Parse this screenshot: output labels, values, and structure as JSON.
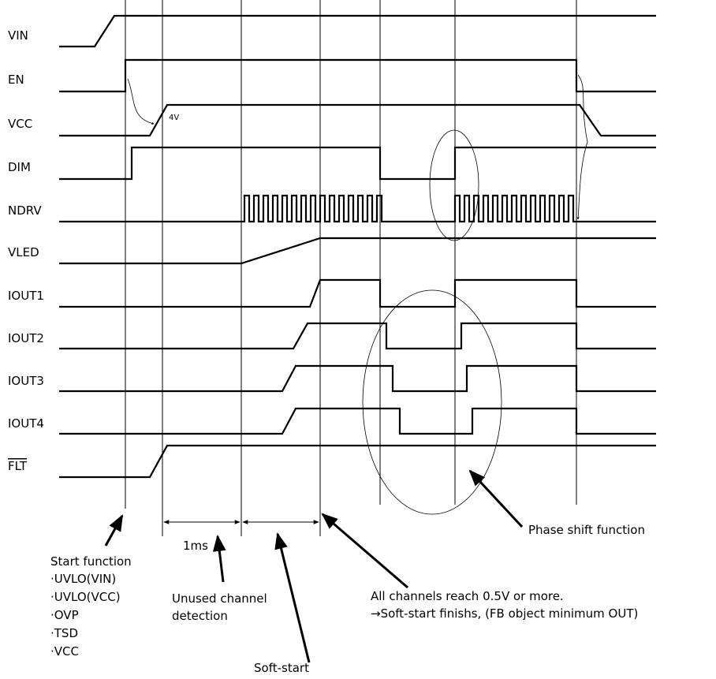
{
  "signals": [
    "VIN",
    "EN",
    "VCC",
    "DIM",
    "NDRV",
    "VLED",
    "IOUT1",
    "IOUT2",
    "IOUT3",
    "IOUT4",
    "FLT"
  ],
  "vcc_threshold": "4V",
  "interval_label": "1ms",
  "start_function": {
    "title": "Start function",
    "items": [
      "·UVLO(VIN)",
      "·UVLO(VCC)",
      "·OVP",
      "·TSD",
      "·VCC"
    ]
  },
  "unused_channel": [
    "Unused channel",
    "detection"
  ],
  "soft_start": "Soft-start",
  "all_channels": [
    "All channels reach 0.5V or more.",
    "→Soft-start finishs, (FB object minimum OUT)"
  ],
  "phase_shift": "Phase shift function"
}
